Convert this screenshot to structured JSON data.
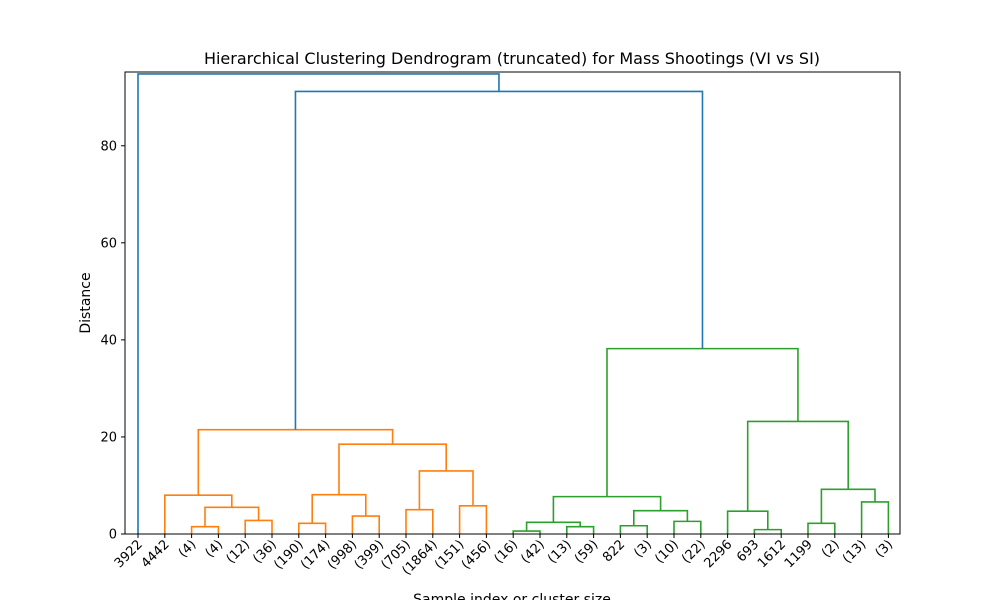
{
  "chart_data": {
    "type": "dendrogram",
    "title": "Hierarchical Clustering Dendrogram (truncated) for Mass Shootings (VI vs SI)",
    "xlabel": "Sample index or cluster size",
    "ylabel": "Distance",
    "ylim": [
      0,
      95
    ],
    "yticks": [
      0,
      20,
      40,
      60,
      80
    ],
    "grid": false,
    "leaf_labels": [
      "3922",
      "4442",
      "(4)",
      "(4)",
      "(12)",
      "(36)",
      "(190)",
      "(174)",
      "(998)",
      "(399)",
      "(705)",
      "(1864)",
      "(151)",
      "(456)",
      "(16)",
      "(42)",
      "(13)",
      "(59)",
      "822",
      "(3)",
      "(10)",
      "(22)",
      "2296",
      "693",
      "1612",
      "1199",
      "(2)",
      "(13)",
      "(3)"
    ],
    "colors": {
      "link_root": "#1f77b4",
      "cluster_1": "#ff7f0e",
      "cluster_2": "#2ca02c"
    },
    "links": [
      {
        "x1": 2,
        "x2": 3,
        "h": 1.5,
        "c": "cluster_1"
      },
      {
        "x1": 4,
        "x2": 5,
        "h": 2.8,
        "c": "cluster_1"
      },
      {
        "x1": 2.5,
        "x2": 4.5,
        "h": 5.5,
        "c": "cluster_1"
      },
      {
        "x1": 1,
        "x2": 3.5,
        "h": 8.0,
        "c": "cluster_1"
      },
      {
        "x1": 6,
        "x2": 7,
        "h": 2.2,
        "c": "cluster_1"
      },
      {
        "x1": 8,
        "x2": 9,
        "h": 3.7,
        "c": "cluster_1"
      },
      {
        "x1": 6.5,
        "x2": 8.5,
        "h": 8.1,
        "c": "cluster_1"
      },
      {
        "x1": 10,
        "x2": 11,
        "h": 5.0,
        "c": "cluster_1"
      },
      {
        "x1": 12,
        "x2": 13,
        "h": 5.8,
        "c": "cluster_1"
      },
      {
        "x1": 10.5,
        "x2": 12.5,
        "h": 13.0,
        "c": "cluster_1"
      },
      {
        "x1": 7.5,
        "x2": 11.5,
        "h": 18.5,
        "c": "cluster_1"
      },
      {
        "x1": 2.25,
        "x2": 9.5,
        "h": 21.5,
        "c": "cluster_1"
      },
      {
        "x1": 14,
        "x2": 15,
        "h": 0.6,
        "c": "cluster_2"
      },
      {
        "x1": 16,
        "x2": 17,
        "h": 1.5,
        "c": "cluster_2"
      },
      {
        "x1": 14.5,
        "x2": 16.5,
        "h": 2.4,
        "c": "cluster_2"
      },
      {
        "x1": 18,
        "x2": 19,
        "h": 1.7,
        "c": "cluster_2"
      },
      {
        "x1": 20,
        "x2": 21,
        "h": 2.6,
        "c": "cluster_2"
      },
      {
        "x1": 18.5,
        "x2": 20.5,
        "h": 4.8,
        "c": "cluster_2"
      },
      {
        "x1": 15.5,
        "x2": 19.5,
        "h": 7.7,
        "c": "cluster_2"
      },
      {
        "x1": 23,
        "x2": 24,
        "h": 0.9,
        "c": "cluster_2"
      },
      {
        "x1": 22,
        "x2": 23.5,
        "h": 4.7,
        "c": "cluster_2"
      },
      {
        "x1": 25,
        "x2": 26,
        "h": 2.2,
        "c": "cluster_2"
      },
      {
        "x1": 27,
        "x2": 28,
        "h": 6.6,
        "c": "cluster_2"
      },
      {
        "x1": 25.5,
        "x2": 27.5,
        "h": 9.2,
        "c": "cluster_2"
      },
      {
        "x1": 22.75,
        "x2": 26.5,
        "h": 23.2,
        "c": "cluster_2"
      },
      {
        "x1": 17.5,
        "x2": 24.625,
        "h": 38.2,
        "c": "cluster_2"
      },
      {
        "x1": 5.875,
        "x2": 21.0625,
        "h": 91.2,
        "c": "link_root"
      },
      {
        "x1": 0,
        "x2": 13.46875,
        "h": 94.8,
        "c": "link_root"
      }
    ]
  }
}
